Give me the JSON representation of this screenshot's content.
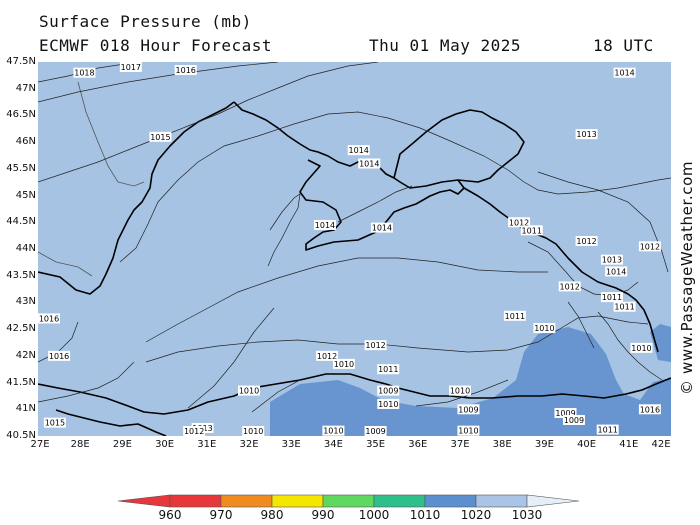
{
  "header": {
    "title": "Surface Pressure (mb)",
    "model": "ECMWF 018 Hour Forecast",
    "date": "Thu 01 May 2025",
    "time": "18 UTC"
  },
  "watermark": "© www.PassageWeather.com",
  "axes": {
    "lat_labels": [
      "47.5N",
      "47N",
      "46.5N",
      "46N",
      "45.5N",
      "45N",
      "44.5N",
      "44N",
      "43.5N",
      "43N",
      "42.5N",
      "42N",
      "41.5N",
      "41N",
      "40.5N"
    ],
    "lon_labels": [
      "27E",
      "28E",
      "29E",
      "30E",
      "31E",
      "32E",
      "33E",
      "34E",
      "35E",
      "36E",
      "37E",
      "38E",
      "39E",
      "40E",
      "41E",
      "42E"
    ]
  },
  "isobar_labels": [
    {
      "text": "1018",
      "lon": 28.1,
      "lat": 47.3
    },
    {
      "text": "1017",
      "lon": 29.2,
      "lat": 47.42
    },
    {
      "text": "1016",
      "lon": 30.5,
      "lat": 47.35
    },
    {
      "text": "1014",
      "lon": 40.9,
      "lat": 47.3
    },
    {
      "text": "1015",
      "lon": 29.9,
      "lat": 46.1
    },
    {
      "text": "1014",
      "lon": 34.6,
      "lat": 45.85
    },
    {
      "text": "1014",
      "lon": 34.85,
      "lat": 45.6
    },
    {
      "text": "1013",
      "lon": 40.0,
      "lat": 46.15
    },
    {
      "text": "1014",
      "lon": 33.8,
      "lat": 44.45
    },
    {
      "text": "1014",
      "lon": 35.15,
      "lat": 44.4
    },
    {
      "text": "1012",
      "lon": 38.4,
      "lat": 44.5
    },
    {
      "text": "1011",
      "lon": 38.7,
      "lat": 44.35
    },
    {
      "text": "1012",
      "lon": 40.0,
      "lat": 44.15
    },
    {
      "text": "1012",
      "lon": 41.5,
      "lat": 44.05
    },
    {
      "text": "1013",
      "lon": 40.6,
      "lat": 43.8
    },
    {
      "text": "1014",
      "lon": 40.7,
      "lat": 43.58
    },
    {
      "text": "1012",
      "lon": 39.6,
      "lat": 43.3
    },
    {
      "text": "1011",
      "lon": 40.6,
      "lat": 43.1
    },
    {
      "text": "1011",
      "lon": 40.9,
      "lat": 42.92
    },
    {
      "text": "1011",
      "lon": 38.3,
      "lat": 42.75
    },
    {
      "text": "1010",
      "lon": 39.0,
      "lat": 42.52
    },
    {
      "text": "1016",
      "lon": 27.25,
      "lat": 42.7
    },
    {
      "text": "1016",
      "lon": 27.5,
      "lat": 42.0
    },
    {
      "text": "1012",
      "lon": 35.0,
      "lat": 42.2
    },
    {
      "text": "1012",
      "lon": 33.85,
      "lat": 42.0
    },
    {
      "text": "1010",
      "lon": 34.25,
      "lat": 41.85
    },
    {
      "text": "1011",
      "lon": 35.3,
      "lat": 41.75
    },
    {
      "text": "1010",
      "lon": 32.0,
      "lat": 41.35
    },
    {
      "text": "1009",
      "lon": 35.3,
      "lat": 41.35
    },
    {
      "text": "1010",
      "lon": 35.3,
      "lat": 41.1
    },
    {
      "text": "1010",
      "lon": 37.0,
      "lat": 41.35
    },
    {
      "text": "1009",
      "lon": 37.2,
      "lat": 41.0
    },
    {
      "text": "1009",
      "lon": 39.5,
      "lat": 40.93
    },
    {
      "text": "1009",
      "lon": 39.7,
      "lat": 40.8
    },
    {
      "text": "1015",
      "lon": 27.4,
      "lat": 40.75
    },
    {
      "text": "1013",
      "lon": 30.9,
      "lat": 40.65
    },
    {
      "text": "1012",
      "lon": 30.7,
      "lat": 40.5
    },
    {
      "text": "1010",
      "lon": 32.1,
      "lat": 40.55
    },
    {
      "text": "1010",
      "lon": 34.0,
      "lat": 40.6
    },
    {
      "text": "1009",
      "lon": 35.0,
      "lat": 40.55
    },
    {
      "text": "1010",
      "lon": 37.2,
      "lat": 40.6
    },
    {
      "text": "1011",
      "lon": 40.5,
      "lat": 40.62
    },
    {
      "text": "1010",
      "lon": 41.3,
      "lat": 42.15
    },
    {
      "text": "1016",
      "lon": 41.5,
      "lat": 41.0
    }
  ],
  "colorbar": {
    "labels": [
      "960",
      "970",
      "980",
      "990",
      "1000",
      "1010",
      "1020",
      "1030"
    ],
    "colors": [
      "#e8373a",
      "#f08c1f",
      "#f5e600",
      "#5fd85f",
      "#2fbf8a",
      "#5b8fd0",
      "#a9c4e4",
      "#e6eef8"
    ]
  },
  "colors": {
    "sea_fill": "#a6c3e3",
    "low_fill": "#6895cf",
    "coast": "#000000"
  }
}
